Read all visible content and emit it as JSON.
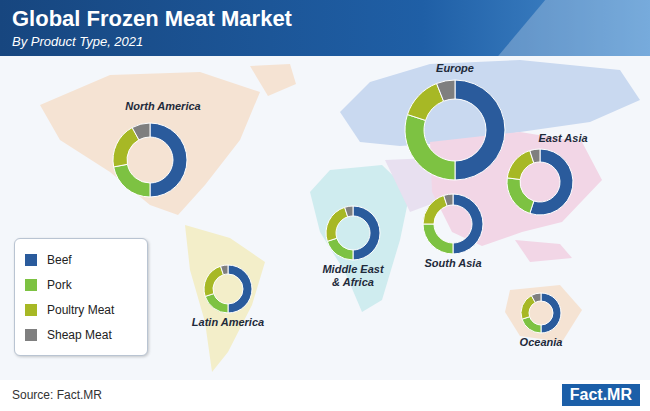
{
  "chart_data": {
    "type": "pie",
    "title": "Global Frozen Meat Market",
    "subtitle": "By Product Type, 2021",
    "source": "Source: Fact.MR",
    "logo": "Fact.MR",
    "legend": "lower left",
    "categories": [
      "Beef",
      "Pork",
      "Poultry Meat",
      "Sheap Meat"
    ],
    "colors": [
      "#2a5b9c",
      "#7dc242",
      "#a7b825",
      "#7f7f7f"
    ],
    "series": [
      {
        "name": "North America",
        "values": [
          50,
          22,
          20,
          8
        ]
      },
      {
        "name": "Europe",
        "values": [
          50,
          30,
          14,
          6
        ]
      },
      {
        "name": "East Asia",
        "values": [
          55,
          22,
          18,
          5
        ]
      },
      {
        "name": "Middle East & Africa",
        "values": [
          50,
          20,
          25,
          5
        ]
      },
      {
        "name": "South Asia",
        "values": [
          50,
          25,
          20,
          5
        ]
      },
      {
        "name": "Latin America",
        "values": [
          50,
          20,
          25,
          5
        ]
      },
      {
        "name": "Oceania",
        "values": [
          50,
          20,
          22,
          8
        ]
      }
    ]
  }
}
